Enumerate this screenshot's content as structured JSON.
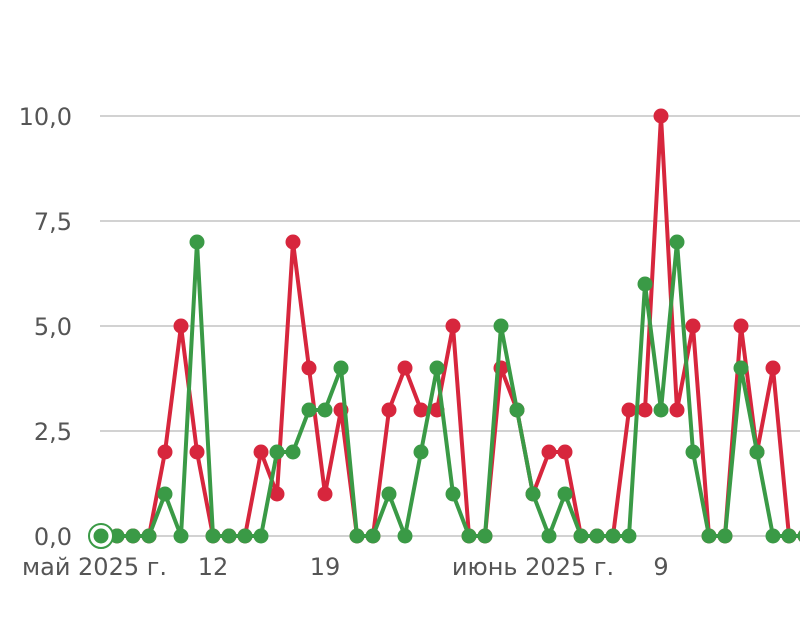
{
  "chart_data": {
    "type": "line",
    "x_labels": [
      "май 2025 г.",
      "12",
      "19",
      "июнь 2025 г.",
      "9"
    ],
    "x_label_dates": [
      "2025-05-05",
      "2025-05-12",
      "2025-05-19",
      "2025-06-01",
      "2025-06-09"
    ],
    "y_ticks": [
      "0,0",
      "2,5",
      "5,0",
      "7,5",
      "10,0"
    ],
    "ylim": [
      0,
      10
    ],
    "grid": true,
    "series": [
      {
        "color": "#d7263d",
        "values": [
          0,
          0,
          0,
          0,
          2,
          5,
          2,
          0,
          0,
          0,
          2,
          1,
          7,
          4,
          1,
          3,
          0,
          0,
          3,
          4,
          3,
          3,
          5,
          0,
          0,
          4,
          3,
          1,
          2,
          2,
          0,
          0,
          0,
          3,
          3,
          10,
          3,
          5,
          0,
          0,
          5,
          2,
          4,
          0,
          0
        ]
      },
      {
        "color": "#3a9a46",
        "values": [
          0,
          0,
          0,
          0,
          1,
          0,
          7,
          0,
          0,
          0,
          0,
          2,
          2,
          3,
          3,
          4,
          0,
          0,
          1,
          0,
          2,
          4,
          1,
          0,
          0,
          5,
          3,
          1,
          0,
          1,
          0,
          0,
          0,
          0,
          6,
          3,
          7,
          2,
          0,
          0,
          4,
          2,
          0,
          0,
          0
        ]
      }
    ],
    "first_point_marker": "highlighted"
  }
}
